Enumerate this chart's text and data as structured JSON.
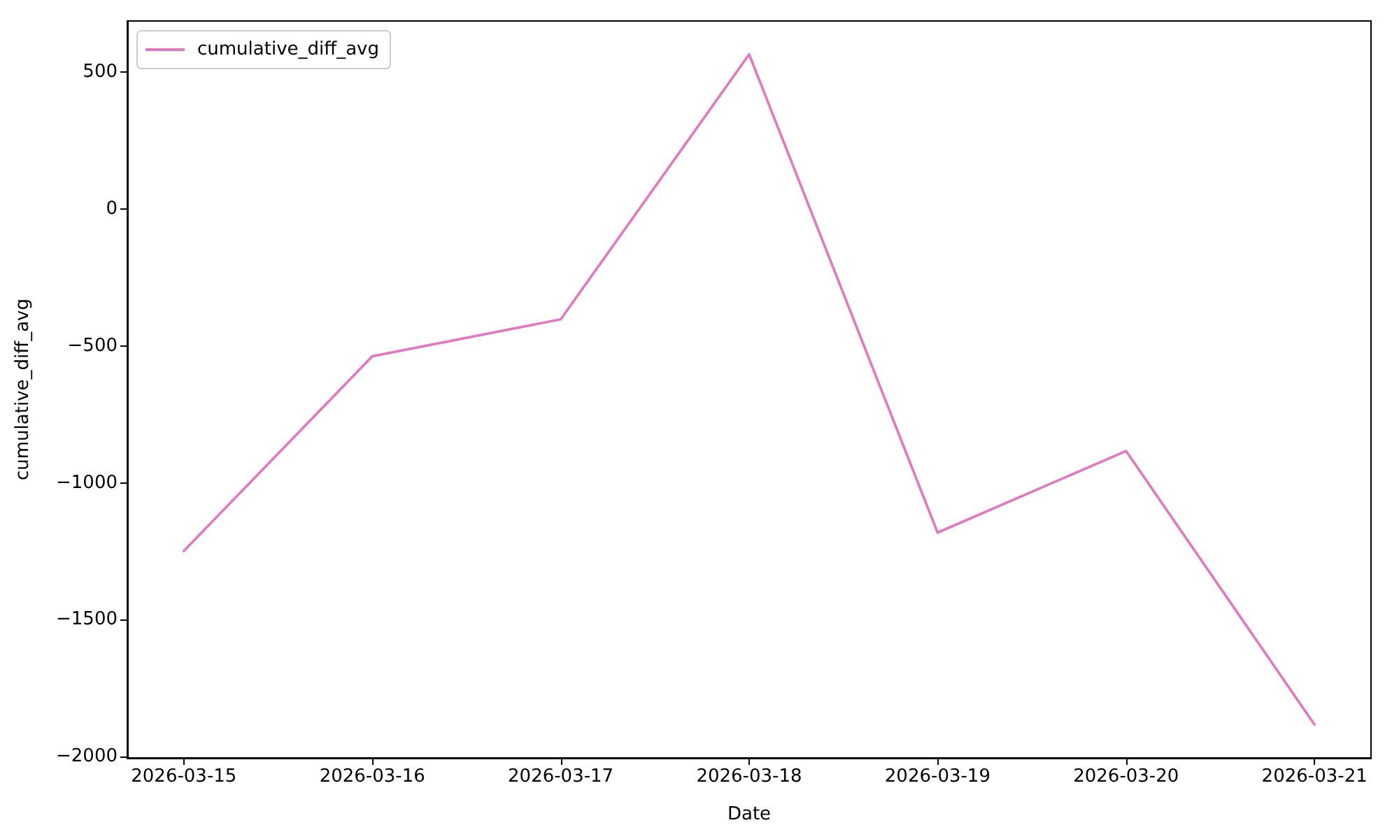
{
  "chart_data": {
    "type": "line",
    "xlabel": "Date",
    "ylabel": "cumulative_diff_avg",
    "x": [
      "2026-03-15",
      "2026-03-16",
      "2026-03-17",
      "2026-03-18",
      "2026-03-19",
      "2026-03-20",
      "2026-03-21"
    ],
    "series": [
      {
        "name": "cumulative_diff_avg",
        "color": "#e377c2",
        "values": [
          -1249,
          -538,
          -403,
          565,
          -1182,
          -884,
          -1883
        ]
      }
    ],
    "xlim": [
      "2026-03-14T16:48",
      "2026-03-21T07:12"
    ],
    "ylim": [
      -2005,
      687
    ],
    "xticks": [
      "2026-03-15",
      "2026-03-16",
      "2026-03-17",
      "2026-03-18",
      "2026-03-19",
      "2026-03-20",
      "2026-03-21"
    ],
    "yticks": [
      {
        "value": -2000,
        "label": "−2000"
      },
      {
        "value": -1500,
        "label": "−1500"
      },
      {
        "value": -1000,
        "label": "−1000"
      },
      {
        "value": -500,
        "label": "−500"
      },
      0,
      500
    ],
    "grid": false,
    "legend": "top left",
    "marker": "none",
    "line_style": "solid"
  }
}
